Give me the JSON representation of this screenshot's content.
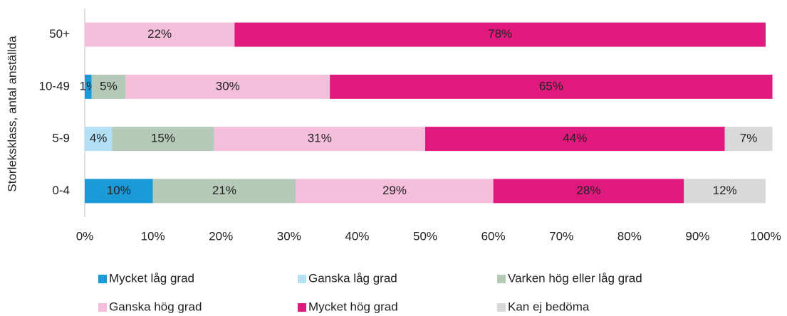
{
  "chart_data": {
    "type": "stacked-bar-horizontal",
    "y_label": "Storleksklass, antal anställda",
    "categories": [
      "50+",
      "10-49",
      "5-9",
      "0-4"
    ],
    "series": [
      {
        "name": "Mycket låg grad",
        "color": "#1a9ad6",
        "values": [
          null,
          1,
          null,
          10
        ],
        "value_labels": [
          null,
          "1%",
          null,
          "10%"
        ]
      },
      {
        "name": "Ganska låg grad",
        "color": "#b3dff5",
        "values": [
          null,
          null,
          4,
          null
        ],
        "value_labels": [
          null,
          null,
          "4%",
          null
        ]
      },
      {
        "name": "Varken hög eller låg grad",
        "color": "#b5c9b8",
        "values": [
          null,
          5,
          15,
          21
        ],
        "value_labels": [
          null,
          "5%",
          "15%",
          "21%"
        ]
      },
      {
        "name": "Ganska hög grad",
        "color": "#f5bfdc",
        "values": [
          22,
          30,
          31,
          29
        ],
        "value_labels": [
          "22%",
          "30%",
          "31%",
          "29%"
        ]
      },
      {
        "name": "Mycket hög grad",
        "color": "#e0197e",
        "values": [
          78,
          65,
          44,
          28
        ],
        "value_labels": [
          "78%",
          "65%",
          "44%",
          "28%"
        ]
      },
      {
        "name": "Kan ej bedöma",
        "color": "#d9d9d9",
        "values": [
          null,
          null,
          7,
          12
        ],
        "value_labels": [
          null,
          null,
          "7%",
          "12%"
        ]
      }
    ],
    "xlim": [
      0,
      100
    ],
    "xticks": [
      {
        "value": 0,
        "label": "0%"
      },
      {
        "value": 10,
        "label": "10%"
      },
      {
        "value": 20,
        "label": "20%"
      },
      {
        "value": 30,
        "label": "30%"
      },
      {
        "value": 40,
        "label": "40%"
      },
      {
        "value": 50,
        "label": "50%"
      },
      {
        "value": 60,
        "label": "60%"
      },
      {
        "value": 70,
        "label": "70%"
      },
      {
        "value": 80,
        "label": "80%"
      },
      {
        "value": 90,
        "label": "90%"
      },
      {
        "value": 100,
        "label": "100%"
      }
    ],
    "legend": "bottom"
  }
}
